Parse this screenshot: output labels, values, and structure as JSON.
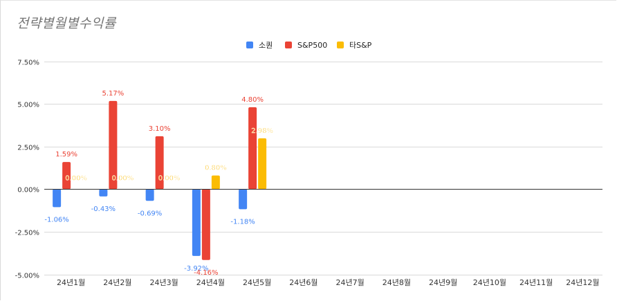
{
  "chart_data": {
    "type": "bar",
    "title": "전략별월별수익률",
    "categories": [
      "24년1월",
      "24년2월",
      "24년3월",
      "24년4월",
      "24년5월",
      "24년6월",
      "24년7월",
      "24년8월",
      "24년9월",
      "24년10월",
      "24년11월",
      "24년12월"
    ],
    "series": [
      {
        "name": "소퀀",
        "color": "#4285f4",
        "values": [
          -1.06,
          -0.43,
          -0.69,
          -3.92,
          -1.18,
          null,
          null,
          null,
          null,
          null,
          null,
          null
        ],
        "labels": [
          "-1.06%",
          "-0.43%",
          "-0.69%",
          "-3.92%",
          "-1.18%"
        ]
      },
      {
        "name": "S&P500",
        "color": "#ea4335",
        "values": [
          1.59,
          5.17,
          3.1,
          -4.16,
          4.8,
          null,
          null,
          null,
          null,
          null,
          null,
          null
        ],
        "labels": [
          "1.59%",
          "5.17%",
          "3.10%",
          "-4.16%",
          "4.80%"
        ]
      },
      {
        "name": "타S&P",
        "color": "#fbbc04",
        "values": [
          0.0,
          0.0,
          0.0,
          0.8,
          2.98,
          null,
          null,
          null,
          null,
          null,
          null,
          null
        ],
        "labels": [
          "0.00%",
          "0.00%",
          "0.00%",
          "0.80%",
          "2.98%"
        ]
      }
    ],
    "ylim": [
      -5,
      7.5
    ],
    "yticks": [
      "-5.00%",
      "-2.50%",
      "0.00%",
      "2.50%",
      "5.00%",
      "7.50%"
    ],
    "ytick_values": [
      -5,
      -2.5,
      0,
      2.5,
      5,
      7.5
    ],
    "grid": true,
    "legend_position": "top-center",
    "xlabel": "",
    "ylabel": ""
  }
}
